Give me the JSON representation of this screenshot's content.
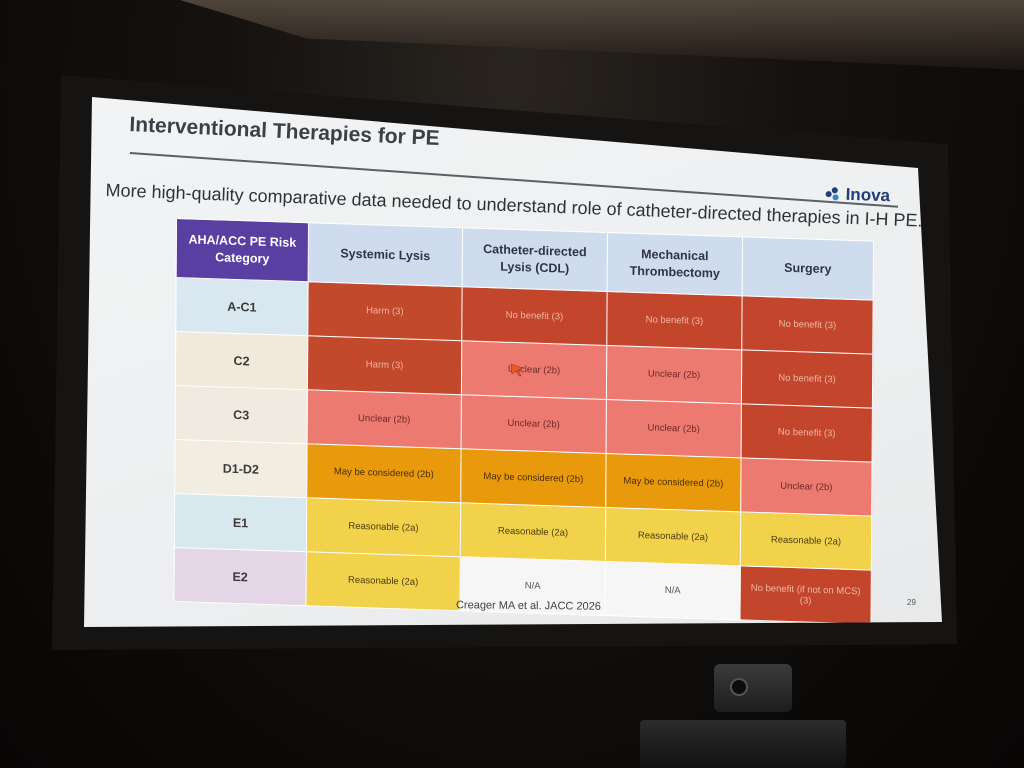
{
  "slide": {
    "title": "Interventional Therapies for PE",
    "subtitle": "More high-quality comparative data needed to understand role of catheter-directed therapies in I-H PE.",
    "logo_text": "Inova",
    "citation": "Creager MA et al. JACC 2026",
    "page_number": "29"
  },
  "table": {
    "headers": [
      "AHA/ACC PE Risk Category",
      "Systemic Lysis",
      "Catheter-directed Lysis (CDL)",
      "Mechanical Thrombectomy",
      "Surgery"
    ],
    "rows": [
      {
        "category": "A-C1",
        "cells": [
          "Harm (3)",
          "No benefit (3)",
          "No benefit (3)",
          "No benefit (3)"
        ]
      },
      {
        "category": "C2",
        "cells": [
          "Harm (3)",
          "Unclear (2b)",
          "Unclear (2b)",
          "No benefit (3)"
        ]
      },
      {
        "category": "C3",
        "cells": [
          "Unclear (2b)",
          "Unclear (2b)",
          "Unclear (2b)",
          "No benefit (3)"
        ]
      },
      {
        "category": "D1-D2",
        "cells": [
          "May be considered (2b)",
          "May be considered (2b)",
          "May be considered (2b)",
          "Unclear (2b)"
        ]
      },
      {
        "category": "E1",
        "cells": [
          "Reasonable (2a)",
          "Reasonable (2a)",
          "Reasonable (2a)",
          "Reasonable (2a)"
        ]
      },
      {
        "category": "E2",
        "cells": [
          "Reasonable (2a)",
          "N/A",
          "N/A",
          "No benefit (if not on MCS) (3)"
        ]
      }
    ],
    "row_colors": [
      "#d9e7f0",
      "#f1eadb",
      "#efebe0",
      "#f2ede1",
      "#d8e8ef",
      "#e4d6e6"
    ]
  },
  "colors": {
    "harm": "#c2492c",
    "no_benefit": "#c3462c",
    "unclear": "#ec7a70",
    "may_be_considered": "#e89a0c",
    "reasonable": "#f1d24a",
    "not_applicable": "#f6f6f6",
    "header_accent": "#5a3fa3",
    "header_bg": "#cfdcee"
  }
}
